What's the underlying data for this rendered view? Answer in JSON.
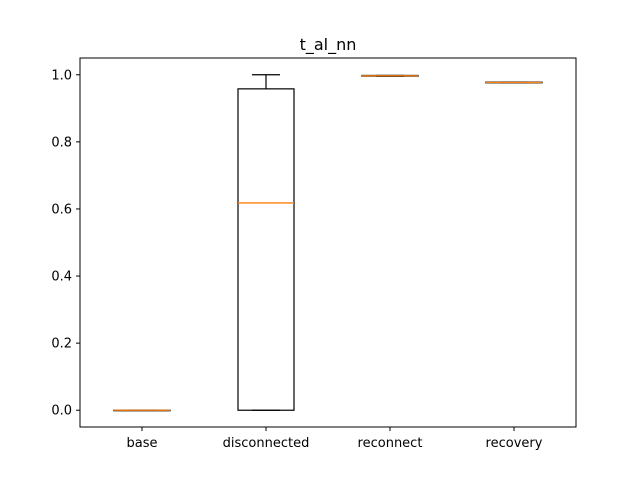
{
  "chart_data": {
    "type": "box",
    "title": "t_al_nn",
    "xlabel": "",
    "ylabel": "",
    "categories": [
      "base",
      "disconnected",
      "reconnect",
      "recovery"
    ],
    "ylim": [
      -0.05,
      1.05
    ],
    "yticks": [
      0.0,
      0.2,
      0.4,
      0.6,
      0.8,
      1.0
    ],
    "ytick_labels": [
      "0.0",
      "0.2",
      "0.4",
      "0.6",
      "0.8",
      "1.0"
    ],
    "grid": false,
    "boxes": [
      {
        "category": "base",
        "whisker_low": 0.0,
        "q1": 0.0,
        "median": 0.0,
        "q3": 0.0,
        "whisker_high": 0.0
      },
      {
        "category": "disconnected",
        "whisker_low": 0.0,
        "q1": 0.0,
        "median": 0.618,
        "q3": 0.958,
        "whisker_high": 1.0
      },
      {
        "category": "reconnect",
        "whisker_low": 0.996,
        "q1": 0.996,
        "median": 0.997,
        "q3": 0.998,
        "whisker_high": 0.998
      },
      {
        "category": "recovery",
        "whisker_low": 0.976,
        "q1": 0.976,
        "median": 0.977,
        "q3": 0.978,
        "whisker_high": 0.978
      }
    ],
    "colors": {
      "box": "#000000",
      "median": "#ff7f0e",
      "axes": "#000000",
      "background": "#ffffff"
    }
  }
}
